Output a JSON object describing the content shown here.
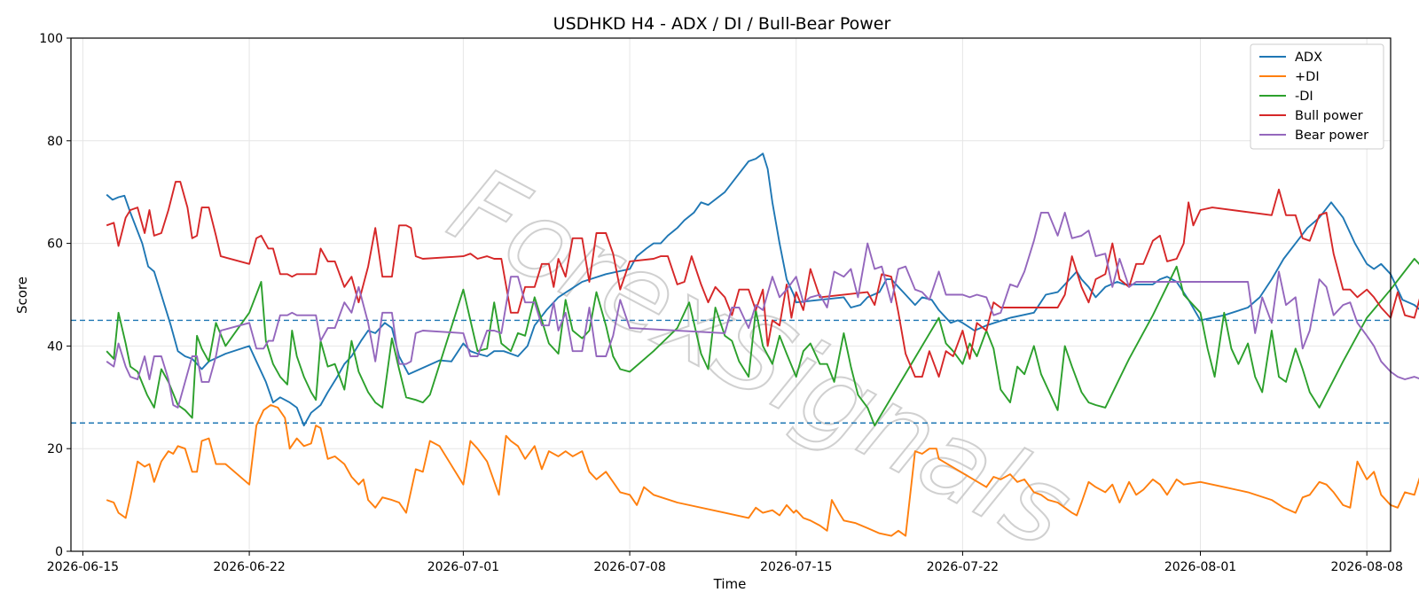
{
  "chart_data": {
    "type": "line",
    "title": "USDHKD H4 - ADX / DI / Bull-Bear Power",
    "xlabel": "Time",
    "ylabel": "Score",
    "ylim": [
      0,
      100
    ],
    "xlim": [
      "2026-06-15",
      "2026-08-08"
    ],
    "y_ticks": [
      0,
      20,
      40,
      60,
      80,
      100
    ],
    "x_ticks": [
      "2026-06-15",
      "2026-06-22",
      "2026-07-01",
      "2026-07-08",
      "2026-07-15",
      "2026-07-22",
      "2026-08-01",
      "2026-08-08"
    ],
    "grid": true,
    "legend_position": "top-right",
    "watermark": "ForexSignals",
    "reference_lines": [
      {
        "y": 45,
        "style": "dashed",
        "color": "#1f77b4"
      },
      {
        "y": 25,
        "style": "dashed",
        "color": "#1f77b4"
      }
    ],
    "series": [
      {
        "name": "ADX",
        "color": "#1f77b4",
        "points": [
          [
            "2026-06-16",
            69.5
          ],
          [
            "2026-06-16.25",
            68.5
          ],
          [
            "2026-06-16.5",
            69
          ],
          [
            "2026-06-16.75",
            69.3
          ],
          [
            "2026-06-17",
            66
          ],
          [
            "2026-06-17.5",
            60
          ],
          [
            "2026-06-17.75",
            55.5
          ],
          [
            "2026-06-18",
            54.5
          ],
          [
            "2026-06-18.3",
            50
          ],
          [
            "2026-06-18.7",
            44
          ],
          [
            "2026-06-19",
            39
          ],
          [
            "2026-06-19.3",
            38
          ],
          [
            "2026-06-19.6",
            37.5
          ],
          [
            "2026-06-20",
            35.5
          ],
          [
            "2026-06-20.3",
            37
          ],
          [
            "2026-06-21",
            38.5
          ],
          [
            "2026-06-22",
            40
          ],
          [
            "2026-06-22.3",
            37
          ],
          [
            "2026-06-22.7",
            33
          ],
          [
            "2026-06-23",
            29
          ],
          [
            "2026-06-23.3",
            30
          ],
          [
            "2026-06-23.7",
            29
          ],
          [
            "2026-06-24",
            28
          ],
          [
            "2026-06-24.3",
            24.5
          ],
          [
            "2026-06-24.6",
            27
          ],
          [
            "2026-06-25",
            28.5
          ],
          [
            "2026-06-25.3",
            31
          ],
          [
            "2026-06-25.7",
            34
          ],
          [
            "2026-06-26",
            36.5
          ],
          [
            "2026-06-26.3",
            38
          ],
          [
            "2026-06-26.7",
            41
          ],
          [
            "2026-06-27",
            43
          ],
          [
            "2026-06-27.3",
            42.5
          ],
          [
            "2026-06-27.7",
            44.5
          ],
          [
            "2026-06-28",
            43.5
          ],
          [
            "2026-06-28.3",
            38
          ],
          [
            "2026-06-28.7",
            34.5
          ],
          [
            "2026-06-30",
            37.2
          ],
          [
            "2026-06-30.5",
            37
          ],
          [
            "2026-07-01",
            40.5
          ],
          [
            "2026-07-01.3",
            39
          ],
          [
            "2026-07-01.6",
            38.5
          ],
          [
            "2026-07-02",
            38
          ],
          [
            "2026-07-02.3",
            39
          ],
          [
            "2026-07-02.7",
            39
          ],
          [
            "2026-07-03",
            38.5
          ],
          [
            "2026-07-03.3",
            38
          ],
          [
            "2026-07-03.7",
            40
          ],
          [
            "2026-07-04",
            44
          ],
          [
            "2026-07-04.5",
            47
          ],
          [
            "2026-07-05",
            49.5
          ],
          [
            "2026-07-05.5",
            51
          ],
          [
            "2026-07-06",
            52.5
          ],
          [
            "2026-07-07",
            54
          ],
          [
            "2026-07-08",
            55
          ],
          [
            "2026-07-08.3",
            57.5
          ],
          [
            "2026-07-08.7",
            59
          ],
          [
            "2026-07-09",
            60
          ],
          [
            "2026-07-09.3",
            60
          ],
          [
            "2026-07-09.6",
            61.5
          ],
          [
            "2026-07-10",
            63
          ],
          [
            "2026-07-10.3",
            64.5
          ],
          [
            "2026-07-10.7",
            66
          ],
          [
            "2026-07-11",
            68
          ],
          [
            "2026-07-11.3",
            67.5
          ],
          [
            "2026-07-12",
            70
          ],
          [
            "2026-07-12.5",
            73
          ],
          [
            "2026-07-13",
            76
          ],
          [
            "2026-07-13.3",
            76.5
          ],
          [
            "2026-07-13.6",
            77.5
          ],
          [
            "2026-07-13.8",
            74.5
          ],
          [
            "2026-07-14",
            68
          ],
          [
            "2026-07-14.3",
            60
          ],
          [
            "2026-07-14.6",
            53
          ],
          [
            "2026-07-14.9",
            50
          ],
          [
            "2026-07-15",
            48.5
          ],
          [
            "2026-07-16",
            49
          ],
          [
            "2026-07-17",
            49.5
          ],
          [
            "2026-07-17.3",
            47.5
          ],
          [
            "2026-07-17.7",
            48
          ],
          [
            "2026-07-18",
            49.5
          ],
          [
            "2026-07-18.5",
            50.5
          ],
          [
            "2026-07-18.8",
            53
          ],
          [
            "2026-07-19",
            53
          ],
          [
            "2026-07-19.3",
            51.5
          ],
          [
            "2026-07-19.6",
            50
          ],
          [
            "2026-07-20",
            48
          ],
          [
            "2026-07-20.3",
            49.5
          ],
          [
            "2026-07-20.7",
            49
          ],
          [
            "2026-07-21",
            47
          ],
          [
            "2026-07-21.5",
            44.5
          ],
          [
            "2026-07-21.8",
            45
          ],
          [
            "2026-07-22",
            44.5
          ],
          [
            "2026-07-22.5",
            43
          ],
          [
            "2026-07-23",
            44
          ],
          [
            "2026-07-24",
            45.5
          ],
          [
            "2026-07-25",
            46.5
          ],
          [
            "2026-07-25.5",
            50
          ],
          [
            "2026-07-26",
            50.5
          ],
          [
            "2026-07-26.5",
            53
          ],
          [
            "2026-07-26.8",
            54.5
          ],
          [
            "2026-07-27",
            53
          ],
          [
            "2026-07-27.3",
            51.5
          ],
          [
            "2026-07-27.6",
            49.5
          ],
          [
            "2026-07-28",
            51.5
          ],
          [
            "2026-07-28.5",
            52.5
          ],
          [
            "2026-07-28.8",
            52
          ],
          [
            "2026-07-29",
            52
          ],
          [
            "2026-07-29.5",
            52
          ],
          [
            "2026-07-30",
            52
          ],
          [
            "2026-07-30.3",
            53
          ],
          [
            "2026-07-30.6",
            53.5
          ],
          [
            "2026-07-31",
            52.5
          ],
          [
            "2026-07-31.5",
            49
          ],
          [
            "2026-08-01",
            45
          ],
          [
            "2026-08-02",
            46
          ],
          [
            "2026-08-03",
            47.5
          ],
          [
            "2026-08-03.5",
            49.5
          ],
          [
            "2026-08-04",
            53
          ],
          [
            "2026-08-04.5",
            57
          ],
          [
            "2026-08-05",
            60
          ],
          [
            "2026-08-05.5",
            63
          ],
          [
            "2026-08-06",
            65
          ],
          [
            "2026-08-06.5",
            68
          ],
          [
            "2026-08-07",
            65
          ],
          [
            "2026-08-07.5",
            60
          ],
          [
            "2026-08-08",
            56
          ],
          [
            "2026-08-08.3",
            55
          ],
          [
            "2026-08-08.6",
            56
          ],
          [
            "2026-08-09",
            54
          ],
          [
            "2026-08-09.5",
            49
          ],
          [
            "2026-08-10",
            48
          ],
          [
            "2026-08-10.5",
            46
          ],
          [
            "2026-08-11",
            46.5
          ],
          [
            "2026-08-11.5",
            45.5
          ],
          [
            "2026-08-12",
            46
          ],
          [
            "2026-08-12.5",
            45
          ],
          [
            "2026-08-13",
            46
          ],
          [
            "2026-08-14",
            47
          ],
          [
            "2026-08-15",
            46.5
          ],
          [
            "2026-08-15.5",
            48
          ],
          [
            "2026-08-16",
            49
          ],
          [
            "2026-08-17",
            48.5
          ],
          [
            "2026-08-19",
            47
          ],
          [
            "2026-08-20",
            46.5
          ],
          [
            "2026-08-20.5",
            42
          ],
          [
            "2026-08-20.8",
            36.5
          ]
        ]
      }
    ]
  }
}
